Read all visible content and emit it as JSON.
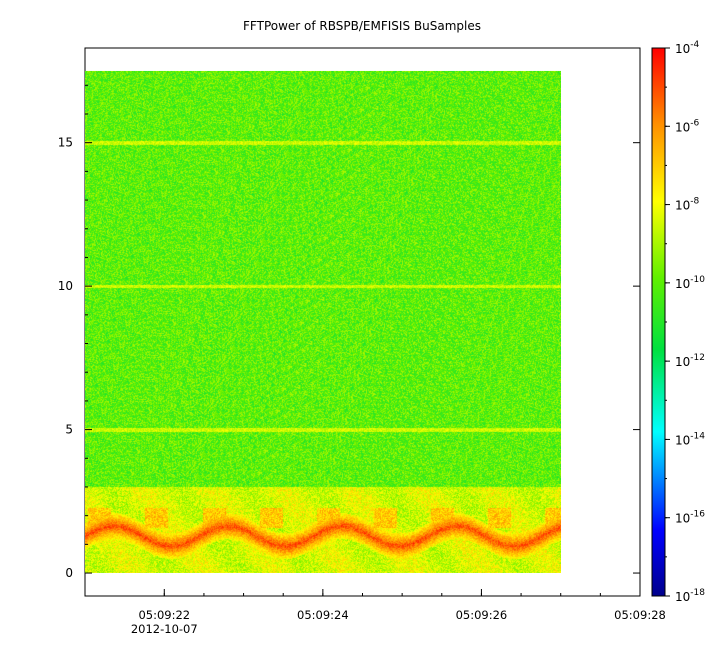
{
  "chart_data": {
    "type": "heatmap",
    "title": "FFTPower of RBSPB/EMFISIS  BuSamples",
    "xlabel": "",
    "ylabel": "",
    "x_ticks": [
      {
        "value": "05:09:22",
        "sub": "2012-10-07"
      },
      {
        "value": "05:09:24",
        "sub": ""
      },
      {
        "value": "05:09:26",
        "sub": ""
      },
      {
        "value": "05:09:28",
        "sub": ""
      }
    ],
    "x_range": [
      "05:09:21.0",
      "05:09:28.0"
    ],
    "data_x_range": [
      "05:09:21.0",
      "05:09:27.0"
    ],
    "y_ticks": [
      0,
      5,
      10,
      15
    ],
    "y_range": [
      -0.8,
      18.3
    ],
    "data_y_range": [
      0,
      17.5
    ],
    "z_scale": "log",
    "z_range": [
      "1e-18",
      "1e-4"
    ],
    "z_ticks": [
      {
        "base": "10",
        "exp": "-4",
        "value": -4
      },
      {
        "base": "10",
        "exp": "-6",
        "value": -6
      },
      {
        "base": "10",
        "exp": "-8",
        "value": -8
      },
      {
        "base": "10",
        "exp": "-10",
        "value": -10
      },
      {
        "base": "10",
        "exp": "-12",
        "value": -12
      },
      {
        "base": "10",
        "exp": "-14",
        "value": -14
      },
      {
        "base": "10",
        "exp": "-16",
        "value": -16
      },
      {
        "base": "10",
        "exp": "-18",
        "value": -18
      }
    ],
    "colormap": [
      "#0000a0",
      "#0000ff",
      "#00ffff",
      "#00ff40",
      "#80ff00",
      "#ffff00",
      "#ff8000",
      "#ff0000"
    ],
    "features": {
      "background_level": -10,
      "harmonic_lines_y": [
        5,
        10,
        15
      ],
      "harmonic_level": -8.5,
      "intense_band": {
        "y": [
          0.9,
          2.0
        ],
        "level": -5
      },
      "moderate_band": {
        "y": [
          0,
          3.0
        ],
        "level": -8
      }
    }
  }
}
